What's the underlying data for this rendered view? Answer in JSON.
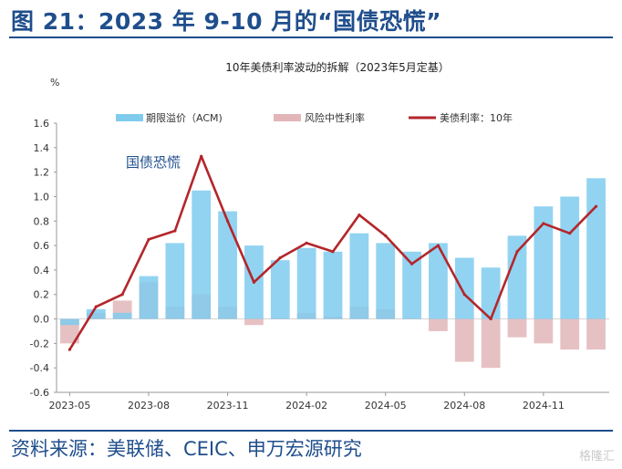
{
  "figure": {
    "title": "图 21：2023 年 9-10 月的“国债恐慌”",
    "source": "资料来源：美联储、CEIC、申万宏源研究",
    "watermark": "格隆汇"
  },
  "chart_data": {
    "type": "bar",
    "title": "10年美债利率波动的拆解（2023年5月定基）",
    "ylabel": "%",
    "xlabel": "",
    "ylim": [
      -0.6,
      1.6
    ],
    "yticks": [
      "1.6",
      "1.4",
      "1.2",
      "1.0",
      "0.8",
      "0.6",
      "0.4",
      "0.2",
      "0.0",
      "-0.2",
      "-0.4",
      "-0.6"
    ],
    "xticks": [
      "2023-05",
      "2023-08",
      "2023-11",
      "2024-02",
      "2024-05",
      "2024-08",
      "2024-11"
    ],
    "x": [
      "2023-05",
      "2023-06",
      "2023-07",
      "2023-08",
      "2023-09",
      "2023-10",
      "2023-11",
      "2023-12",
      "2024-01",
      "2024-02",
      "2024-03",
      "2024-04",
      "2024-05",
      "2024-06",
      "2024-07",
      "2024-08",
      "2024-09",
      "2024-10",
      "2024-11",
      "2024-12",
      "2025-01"
    ],
    "annotation": "国债恐慌",
    "grid": false,
    "legend_position": "top",
    "series": [
      {
        "name": "期限溢价（ACM)",
        "kind": "bar",
        "color": "#7fcbee",
        "values": [
          -0.05,
          0.08,
          0.05,
          0.35,
          0.62,
          1.05,
          0.88,
          0.6,
          0.48,
          0.58,
          0.55,
          0.7,
          0.62,
          0.55,
          0.62,
          0.5,
          0.42,
          0.68,
          0.92,
          1.0,
          1.15
        ]
      },
      {
        "name": "风险中性利率",
        "kind": "bar",
        "color": "#e2b6b8",
        "values": [
          -0.2,
          0.05,
          0.15,
          0.3,
          0.1,
          0.2,
          0.1,
          -0.05,
          0.0,
          0.05,
          0.02,
          0.1,
          0.08,
          0.0,
          -0.1,
          -0.35,
          -0.4,
          -0.15,
          -0.2,
          -0.25,
          -0.25
        ]
      },
      {
        "name": "美债利率：10年",
        "kind": "line",
        "color": "#b3262b",
        "values": [
          -0.25,
          0.1,
          0.2,
          0.65,
          0.72,
          1.33,
          0.8,
          0.3,
          0.5,
          0.62,
          0.55,
          0.85,
          0.68,
          0.45,
          0.6,
          0.2,
          0.0,
          0.55,
          0.78,
          0.7,
          0.92
        ]
      }
    ]
  }
}
